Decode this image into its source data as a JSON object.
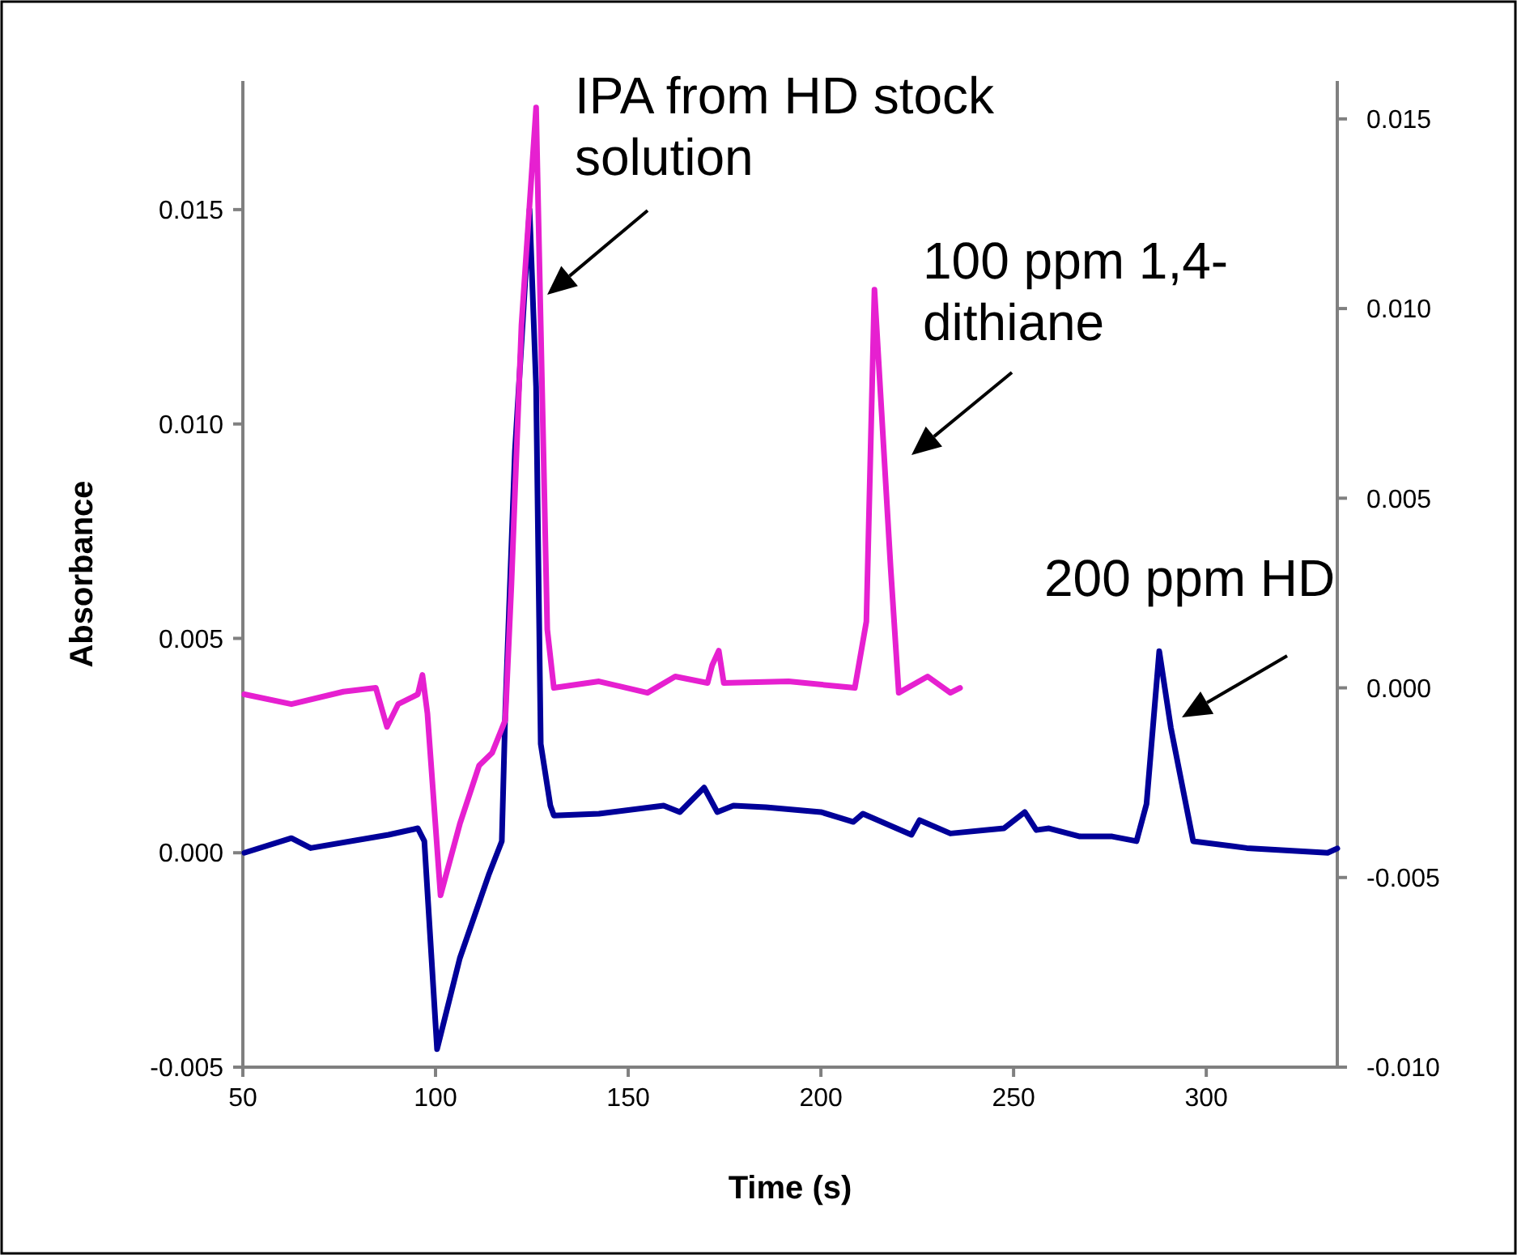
{
  "chart_data": {
    "type": "line",
    "xlabel": "Time (s)",
    "ylabel": "Absorbance",
    "xlim": [
      50,
      334
    ],
    "xticks": [
      50,
      100,
      150,
      200,
      250,
      300
    ],
    "ylim": [
      -0.005,
      0.018
    ],
    "yticks": [
      {
        "value": -0.005,
        "label": "-0.005"
      },
      {
        "value": 0,
        "label": "0.000"
      },
      {
        "value": 0.005,
        "label": "0.005"
      },
      {
        "value": 0.01,
        "label": "0.010"
      },
      {
        "value": 0.015,
        "label": "0.015"
      }
    ],
    "y2lim": [
      -0.01,
      0.016
    ],
    "y2ticks": [
      {
        "value": -0.01,
        "label": "-0.010"
      },
      {
        "value": -0.005,
        "label": "-0.005"
      },
      {
        "value": 0,
        "label": "0.000"
      },
      {
        "value": 0.005,
        "label": "0.005"
      },
      {
        "value": 0.01,
        "label": "0.010"
      },
      {
        "value": 0.015,
        "label": "0.015"
      }
    ],
    "grid": false,
    "marker": "none",
    "line_style": "solid",
    "series": [
      {
        "color": "#000099",
        "x": [
          50.4,
          62.6,
          67.6,
          87.8,
          95.4,
          97.1,
          100.4,
          106.3,
          113.9,
          117.2,
          118.1,
          120.6,
          124.4,
          126.1,
          127.3,
          129.8,
          130.7,
          142.4,
          159.2,
          163.4,
          169.7,
          173.1,
          177.3,
          185.7,
          200,
          208.4,
          210.9,
          223.5,
          225.6,
          233.6,
          247.5,
          252.9,
          255.9,
          259.2,
          267.2,
          275.6,
          281.9,
          284.5,
          287.8,
          290.8,
          296.6,
          310.5,
          331.5,
          334
        ],
        "values": [
          0.0,
          0.00034,
          0.00011,
          0.00042,
          0.00057,
          0.00027,
          -0.00458,
          -0.00246,
          -0.00049,
          0.00027,
          0.0033,
          0.00936,
          0.015,
          0.01087,
          0.00254,
          0.0011,
          0.00087,
          0.00091,
          0.0011,
          0.00095,
          0.00152,
          0.00095,
          0.0011,
          0.00106,
          0.00095,
          0.00072,
          0.00091,
          0.00042,
          0.00076,
          0.00045,
          0.00057,
          0.00095,
          0.00053,
          0.00057,
          0.00038,
          0.00038,
          0.00027,
          0.00114,
          0.0047,
          0.00292,
          0.00027,
          0.00011,
          0.0,
          0.0001
        ]
      },
      {
        "color": "#e620d0",
        "axis": "y2",
        "x": [
          50.4,
          62.6,
          76.1,
          84.5,
          87.4,
          90.3,
          95.4,
          96.6,
          97.9,
          101.3,
          106.3,
          111.3,
          114.7,
          118.1,
          119.7,
          122.3,
          126.1,
          127.3,
          129,
          130.7,
          142.4,
          155,
          162.2,
          170.6,
          171.8,
          173.5,
          174.8,
          191.6,
          208.8,
          211.8,
          213.9,
          218.1,
          220.2,
          227.7,
          233.6,
          236.1
        ],
        "values": [
          -0.00017,
          -0.00043,
          -0.0001,
          0,
          -0.00103,
          -0.00043,
          -0.00017,
          0.00034,
          -0.00068,
          -0.00547,
          -0.00359,
          -0.00205,
          -0.00171,
          -0.00085,
          0.00274,
          0.00957,
          0.0153,
          0.00957,
          0.00154,
          0,
          0.00017,
          -0.00013,
          0.0003,
          0.00013,
          0.0006,
          0.00098,
          0.00013,
          0.00017,
          0.0,
          0.00175,
          0.0105,
          0.00316,
          -0.00013,
          0.0003,
          -0.00013,
          0.0
        ]
      }
    ],
    "annotations": [
      "IPA from HD stock solution",
      "100 ppm 1,4-dithiane",
      "200 ppm HD"
    ]
  }
}
